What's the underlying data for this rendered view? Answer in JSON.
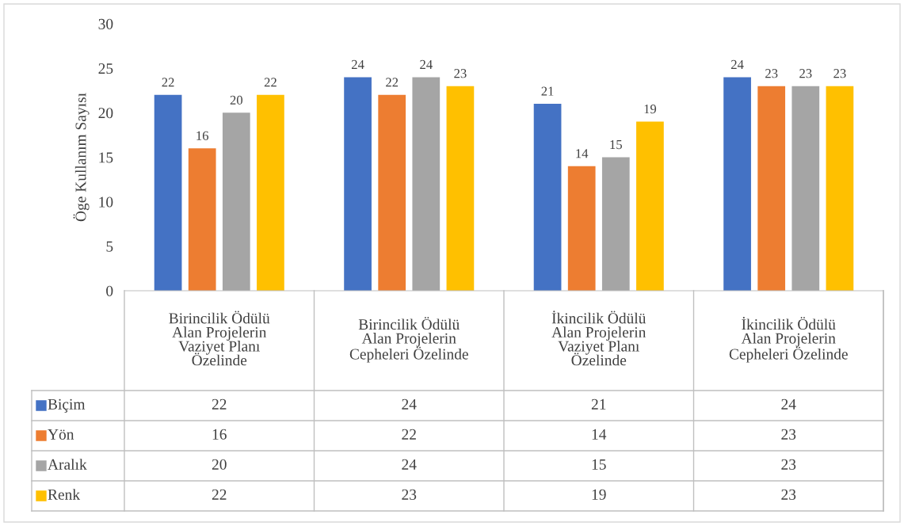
{
  "chart_data": {
    "type": "bar",
    "ylabel": "Öge Kullanım Sayısı",
    "categories": [
      "Birincilik Ödülü Alan Projelerin Vaziyet Planı Özelinde",
      "Birincilik Ödülü Alan Projelerin Cepheleri Özelinde",
      "İkincilik Ödülü Alan Projelerin Vaziyet Planı Özelinde",
      "İkincilik Ödülü Alan Projelerin Cepheleri Özelinde"
    ],
    "series": [
      {
        "name": "Biçim",
        "color": "#4472c4",
        "values": [
          22,
          24,
          21,
          24
        ],
        "value_labels": [
          "22",
          "24",
          "21",
          "24"
        ]
      },
      {
        "name": "Yön",
        "color": "#ed7d31",
        "values": [
          16,
          22,
          14,
          23
        ],
        "value_labels": [
          "16",
          "22",
          "14",
          "23"
        ]
      },
      {
        "name": "Aralık",
        "color": "#a5a5a5",
        "values": [
          20,
          24,
          15,
          23
        ],
        "value_labels": [
          "20",
          "24",
          "15",
          "23"
        ]
      },
      {
        "name": "Renk",
        "color": "#ffc000",
        "values": [
          22,
          23,
          19,
          23
        ],
        "value_labels": [
          "22",
          "23",
          "19",
          "23"
        ]
      }
    ],
    "ylim": [
      0,
      30
    ],
    "yticks": [
      0,
      5,
      10,
      15,
      20,
      25,
      30
    ],
    "grid": false,
    "legend": "bottom",
    "annotations": [
      "22",
      "24",
      "21",
      "24",
      "16",
      "22",
      "14",
      "23",
      "20",
      "24",
      "15",
      "23",
      "22",
      "23",
      "19",
      "23"
    ]
  }
}
